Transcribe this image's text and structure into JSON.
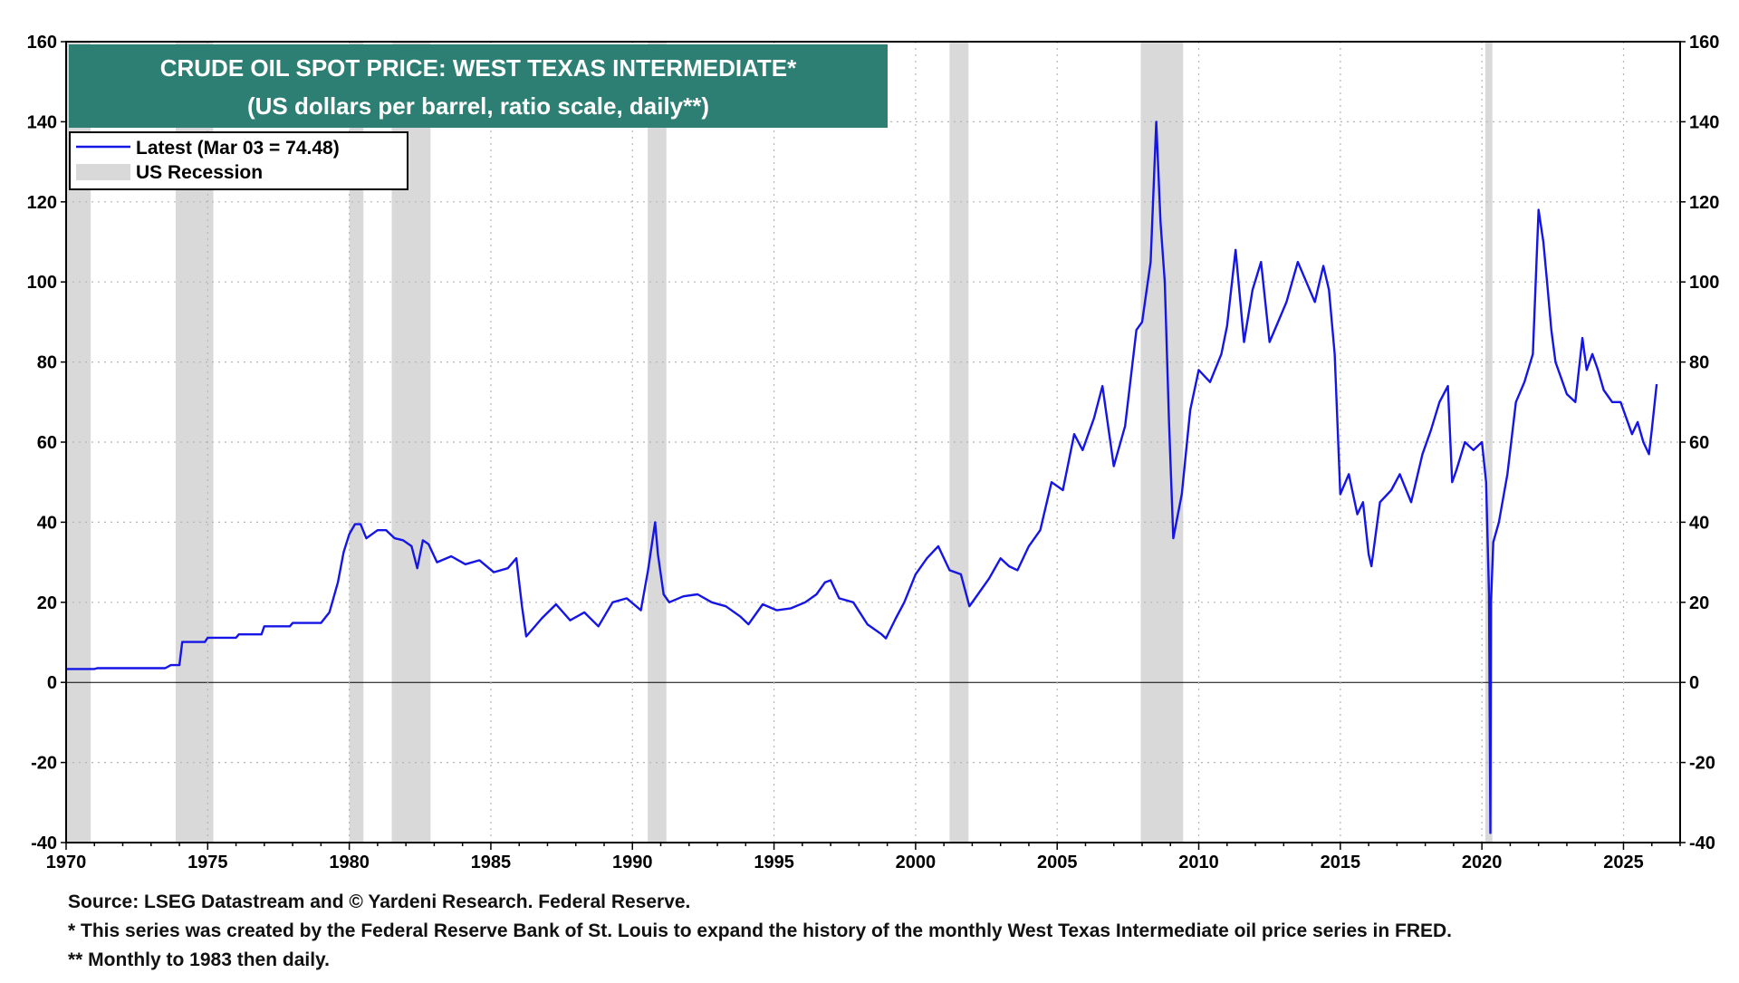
{
  "chart_data": {
    "type": "line",
    "title": "CRUDE OIL SPOT PRICE: WEST TEXAS INTERMEDIATE*",
    "subtitle": "(US dollars per barrel, ratio scale, daily**)",
    "x_range": [
      1970,
      2027
    ],
    "ylim": [
      -40,
      160
    ],
    "y_ticks": [
      -40,
      -20,
      0,
      20,
      40,
      60,
      80,
      100,
      120,
      140,
      160
    ],
    "x_ticks": [
      1970,
      1975,
      1980,
      1985,
      1990,
      1995,
      2000,
      2005,
      2010,
      2015,
      2020,
      2025
    ],
    "grid": true,
    "legend_position": "top-left",
    "series": [
      {
        "name": "Latest (Mar 03 = 74.48)",
        "color": "#1515e6",
        "x": [
          1970.0,
          1971.0,
          1971.1,
          1973.5,
          1973.7,
          1974.0,
          1974.1,
          1974.9,
          1975.0,
          1976.0,
          1976.1,
          1976.9,
          1977.0,
          1977.9,
          1978.0,
          1979.0,
          1979.3,
          1979.6,
          1979.8,
          1980.0,
          1980.2,
          1980.4,
          1980.6,
          1980.8,
          1981.0,
          1981.3,
          1981.6,
          1981.9,
          1982.2,
          1982.4,
          1982.6,
          1982.8,
          1983.1,
          1983.6,
          1984.1,
          1984.6,
          1985.1,
          1985.6,
          1985.9,
          1986.1,
          1986.25,
          1986.5,
          1986.8,
          1987.3,
          1987.8,
          1988.3,
          1988.8,
          1989.3,
          1989.8,
          1990.3,
          1990.55,
          1990.8,
          1990.9,
          1991.1,
          1991.3,
          1991.8,
          1992.3,
          1992.8,
          1993.3,
          1993.8,
          1994.1,
          1994.6,
          1995.1,
          1995.6,
          1996.1,
          1996.5,
          1996.8,
          1997.0,
          1997.3,
          1997.8,
          1998.3,
          1998.8,
          1998.95,
          1999.3,
          1999.6,
          2000.0,
          2000.4,
          2000.8,
          2001.2,
          2001.6,
          2001.9,
          2002.2,
          2002.6,
          2003.0,
          2003.3,
          2003.6,
          2004.0,
          2004.4,
          2004.8,
          2005.2,
          2005.6,
          2005.9,
          2006.3,
          2006.6,
          2007.0,
          2007.4,
          2007.8,
          2008.0,
          2008.3,
          2008.5,
          2008.65,
          2008.8,
          2008.95,
          2009.1,
          2009.4,
          2009.7,
          2010.0,
          2010.4,
          2010.8,
          2011.0,
          2011.3,
          2011.6,
          2011.9,
          2012.2,
          2012.5,
          2012.8,
          2013.1,
          2013.5,
          2013.8,
          2014.1,
          2014.4,
          2014.6,
          2014.8,
          2015.0,
          2015.3,
          2015.6,
          2015.8,
          2016.0,
          2016.1,
          2016.4,
          2016.8,
          2017.1,
          2017.5,
          2017.9,
          2018.2,
          2018.5,
          2018.8,
          2018.95,
          2019.1,
          2019.4,
          2019.7,
          2020.0,
          2020.15,
          2020.25,
          2020.3,
          2020.32,
          2020.4,
          2020.6,
          2020.9,
          2021.2,
          2021.5,
          2021.8,
          2022.0,
          2022.17,
          2022.3,
          2022.45,
          2022.6,
          2022.8,
          2023.0,
          2023.3,
          2023.55,
          2023.7,
          2023.9,
          2024.1,
          2024.3,
          2024.6,
          2024.9,
          2025.1,
          2025.3,
          2025.5,
          2025.7,
          2025.9,
          2026.0,
          2026.17
        ],
        "values": [
          3.35,
          3.35,
          3.56,
          3.56,
          4.31,
          4.31,
          10.1,
          10.1,
          11.16,
          11.16,
          12.0,
          12.0,
          14.0,
          14.0,
          14.85,
          14.85,
          17.5,
          25.0,
          32.5,
          37.0,
          39.5,
          39.5,
          36.0,
          37.0,
          38.0,
          38.0,
          36.0,
          35.5,
          34.0,
          28.5,
          35.5,
          34.5,
          30.0,
          31.5,
          29.5,
          30.5,
          27.5,
          28.5,
          31.0,
          19.0,
          11.5,
          13.5,
          16.0,
          19.5,
          15.5,
          17.5,
          14.0,
          20.0,
          21.0,
          18.0,
          28.0,
          40.0,
          32.0,
          22.0,
          20.0,
          21.5,
          22.0,
          20.0,
          19.0,
          16.5,
          14.5,
          19.5,
          18.0,
          18.5,
          20.0,
          22.0,
          25.0,
          25.5,
          21.0,
          20.0,
          14.5,
          12.0,
          11.0,
          16.0,
          20.0,
          27.0,
          31.0,
          34.0,
          28.0,
          27.0,
          19.0,
          22.0,
          26.0,
          31.0,
          29.0,
          28.0,
          34.0,
          38.0,
          50.0,
          48.0,
          62.0,
          58.0,
          66.0,
          74.0,
          54.0,
          64.0,
          88.0,
          90.0,
          105.0,
          140.0,
          115.0,
          100.0,
          65.0,
          36.0,
          47.0,
          68.0,
          78.0,
          75.0,
          82.0,
          89.0,
          108.0,
          85.0,
          98.0,
          105.0,
          85.0,
          90.0,
          95.0,
          105.0,
          100.0,
          95.0,
          104.0,
          98.0,
          82.0,
          47.0,
          52.0,
          42.0,
          45.0,
          32.0,
          29.0,
          45.0,
          48.0,
          52.0,
          45.0,
          57.0,
          63.0,
          70.0,
          74.0,
          50.0,
          53.0,
          60.0,
          58.0,
          60.0,
          50.0,
          22.0,
          -37.6,
          20.0,
          35.0,
          40.0,
          52.0,
          70.0,
          75.0,
          82.0,
          118.0,
          110.0,
          100.0,
          88.0,
          80.0,
          76.0,
          72.0,
          70.0,
          86.0,
          78.0,
          82.0,
          78.0,
          73.0,
          70.0,
          70.0,
          66.0,
          62.0,
          65.0,
          60.0,
          57.0,
          63.0,
          74.48
        ]
      }
    ],
    "recession": {
      "label": "US Recession",
      "color": "#d9d9d9",
      "periods": [
        [
          1970.0,
          1970.87
        ],
        [
          1973.87,
          1975.2
        ],
        [
          1980.0,
          1980.5
        ],
        [
          1981.5,
          1982.87
        ],
        [
          1990.54,
          1991.2
        ],
        [
          2001.2,
          2001.87
        ],
        [
          2007.95,
          2009.45
        ],
        [
          2020.12,
          2020.37
        ]
      ]
    }
  },
  "notes": {
    "source": "Source: LSEG Datastream and © Yardeni Research. Federal Reserve.",
    "footnote1": "* This series was created by the Federal Reserve Bank of St. Louis to expand the history of the monthly West Texas Intermediate oil price series in FRED.",
    "footnote2": "** Monthly to 1983 then daily."
  },
  "colors": {
    "title_bg": "#2e7f73",
    "line": "#1515e6",
    "recession": "#d9d9d9"
  }
}
